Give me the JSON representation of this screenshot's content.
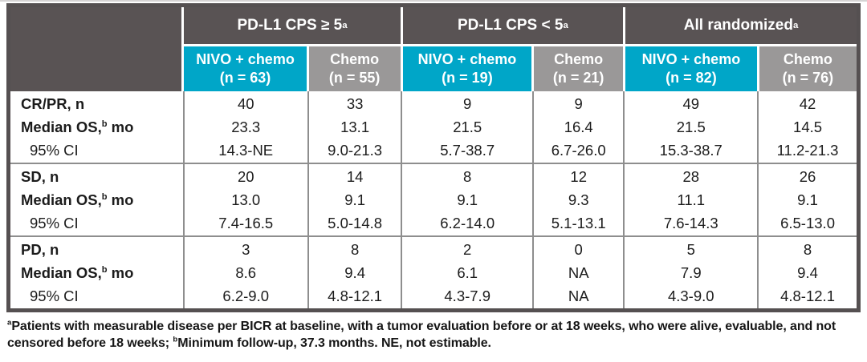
{
  "colors": {
    "teal": "#00a6c8",
    "dark_header": "#595354",
    "gray_header": "#9a9898",
    "grid_line": "#8e8e8e"
  },
  "header": {
    "groups": [
      {
        "text": "PD-L1 CPS ≥ 5",
        "sup": "a"
      },
      {
        "text": "PD-L1 CPS < 5",
        "sup": "a"
      },
      {
        "text": "All randomized",
        "sup": "a"
      }
    ],
    "columns": [
      {
        "line1": "NIVO + chemo",
        "line2": "(n = 63)",
        "arm": "nivo"
      },
      {
        "line1": "Chemo",
        "line2": "(n = 55)",
        "arm": "chemo"
      },
      {
        "line1": "NIVO + chemo",
        "line2": "(n = 19)",
        "arm": "nivo"
      },
      {
        "line1": "Chemo",
        "line2": "(n = 21)",
        "arm": "chemo"
      },
      {
        "line1": "NIVO + chemo",
        "line2": "(n = 82)",
        "arm": "nivo"
      },
      {
        "line1": "Chemo",
        "line2": "(n = 76)",
        "arm": "chemo"
      }
    ]
  },
  "row_labels": {
    "median_pre": "Median OS,",
    "median_sup": "b",
    "median_post": " mo",
    "ci": "95% CI"
  },
  "body": {
    "groups": [
      {
        "label": "CR/PR, n",
        "columns": [
          [
            "40",
            "23.3",
            "14.3-NE"
          ],
          [
            "33",
            "13.1",
            "9.0-21.3"
          ],
          [
            "9",
            "21.5",
            "5.7-38.7"
          ],
          [
            "9",
            "16.4",
            "6.7-26.0"
          ],
          [
            "49",
            "21.5",
            "15.3-38.7"
          ],
          [
            "42",
            "14.5",
            "11.2-21.3"
          ]
        ]
      },
      {
        "label": "SD, n",
        "columns": [
          [
            "20",
            "13.0",
            "7.4-16.5"
          ],
          [
            "14",
            "9.1",
            "5.0-14.8"
          ],
          [
            "8",
            "9.1",
            "6.2-14.0"
          ],
          [
            "12",
            "9.3",
            "5.1-13.1"
          ],
          [
            "28",
            "11.1",
            "7.6-14.3"
          ],
          [
            "26",
            "9.1",
            "6.5-13.0"
          ]
        ]
      },
      {
        "label": "PD, n",
        "columns": [
          [
            "3",
            "8.6",
            "6.2-9.0"
          ],
          [
            "8",
            "9.4",
            "4.8-12.1"
          ],
          [
            "2",
            "6.1",
            "4.3-7.9"
          ],
          [
            "0",
            "NA",
            "NA"
          ],
          [
            "5",
            "7.9",
            "4.3-9.0"
          ],
          [
            "8",
            "9.4",
            "4.8-12.1"
          ]
        ]
      }
    ]
  },
  "footnote": {
    "sup_a": "a",
    "part1": "Patients with measurable disease per BICR at baseline, with a tumor evaluation before or at 18 weeks, who were alive, evaluable, and not censored before 18 weeks; ",
    "sup_b": "b",
    "part2": "Minimum follow-up, 37.3 months. NE, not estimable."
  }
}
